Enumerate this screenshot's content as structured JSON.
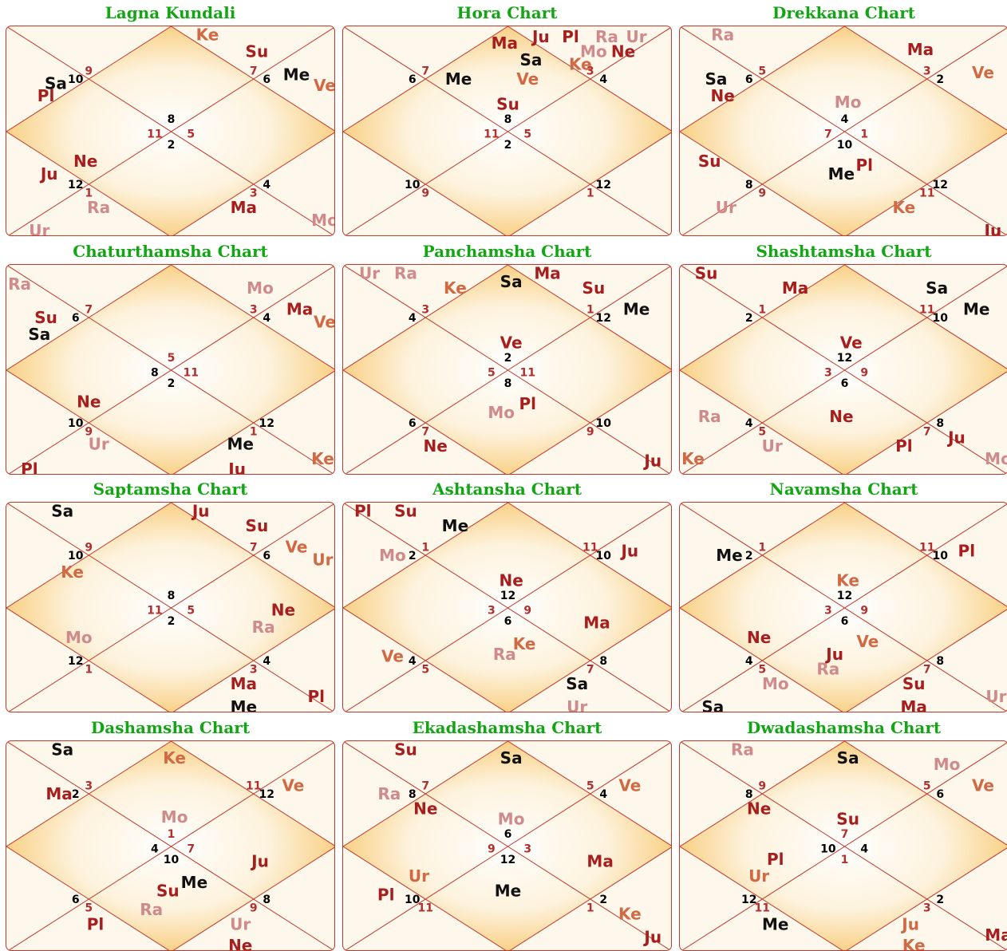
{
  "colors": {
    "title": "#13a513",
    "line": "#c0392b",
    "planet_dark": "#111111",
    "planet_red": "#a61e1e",
    "planet_orange": "#d06a44",
    "planet_pink": "#cf8b8b",
    "house_number": "#000000",
    "house_number_alt": "#b03030",
    "center_glow": "#f8c870",
    "bg": "#fdf7ec"
  },
  "charts": [
    {
      "title": "Lagna Kundali",
      "houses": [
        [
          "8",
          "dark"
        ],
        [
          "11",
          "alt"
        ],
        [
          "2",
          "dark"
        ],
        [
          "5",
          "alt"
        ],
        [
          "10",
          "dark"
        ],
        [
          "9",
          "alt"
        ],
        [
          "6",
          "dark"
        ],
        [
          "7",
          "alt"
        ],
        [
          "12",
          "dark"
        ],
        [
          "1",
          "alt"
        ],
        [
          "4",
          "dark"
        ],
        [
          "3",
          "alt"
        ]
      ],
      "planets": [
        [
          "Ke",
          "orange"
        ],
        [
          "Su",
          "red"
        ],
        [
          "Me",
          "dark"
        ],
        [
          "Ve",
          "orange"
        ],
        [
          "Sa",
          "dark"
        ],
        [
          "Pl",
          "red"
        ],
        [
          "Ne",
          "red"
        ],
        [
          "Ju",
          "red"
        ],
        [
          "Ra",
          "pink"
        ],
        [
          "Ur",
          "pink"
        ],
        [
          "Ma",
          "red"
        ],
        [
          "Mo",
          "pink"
        ]
      ]
    },
    {
      "title": "Hora Chart",
      "houses": [
        [
          "8",
          "dark"
        ],
        [
          "11",
          "alt"
        ],
        [
          "2",
          "dark"
        ],
        [
          "5",
          "alt"
        ],
        [
          "6",
          "dark"
        ],
        [
          "7",
          "alt"
        ],
        [
          "4",
          "dark"
        ],
        [
          "3",
          "alt"
        ],
        [
          "10",
          "dark"
        ],
        [
          "9",
          "alt"
        ],
        [
          "12",
          "dark"
        ],
        [
          "1",
          "alt"
        ]
      ],
      "planets": [
        [
          "Ma",
          "red"
        ],
        [
          "Ju",
          "red"
        ],
        [
          "Pl",
          "red"
        ],
        [
          "Ra",
          "pink"
        ],
        [
          "Ur",
          "pink"
        ],
        [
          "Mo",
          "pink"
        ],
        [
          "Ne",
          "red"
        ],
        [
          "Sa",
          "dark"
        ],
        [
          "Ke",
          "orange"
        ],
        [
          "Ve",
          "orange"
        ],
        [
          "Me",
          "dark"
        ],
        [
          "Su",
          "red"
        ]
      ]
    },
    {
      "title": "Drekkana Chart",
      "houses": [
        [
          "4",
          "dark"
        ],
        [
          "7",
          "alt"
        ],
        [
          "10",
          "dark"
        ],
        [
          "1",
          "alt"
        ],
        [
          "6",
          "dark"
        ],
        [
          "5",
          "alt"
        ],
        [
          "2",
          "dark"
        ],
        [
          "3",
          "alt"
        ],
        [
          "8",
          "dark"
        ],
        [
          "9",
          "alt"
        ],
        [
          "12",
          "dark"
        ],
        [
          "11",
          "alt"
        ]
      ],
      "planets": [
        [
          "Ra",
          "pink"
        ],
        [
          "Ma",
          "red"
        ],
        [
          "Ve",
          "orange"
        ],
        [
          "Sa",
          "dark"
        ],
        [
          "Ne",
          "red"
        ],
        [
          "Mo",
          "pink"
        ],
        [
          "Su",
          "red"
        ],
        [
          "Me",
          "dark"
        ],
        [
          "Pl",
          "red"
        ],
        [
          "Ur",
          "pink"
        ],
        [
          "Ke",
          "orange"
        ],
        [
          "Ju",
          "red"
        ]
      ]
    },
    {
      "title": "Chaturthamsha Chart",
      "houses": [
        [
          "5",
          "alt"
        ],
        [
          "8",
          "dark"
        ],
        [
          "2",
          "dark"
        ],
        [
          "11",
          "alt"
        ],
        [
          "6",
          "dark"
        ],
        [
          "7",
          "alt"
        ],
        [
          "4",
          "dark"
        ],
        [
          "3",
          "alt"
        ],
        [
          "10",
          "dark"
        ],
        [
          "9",
          "alt"
        ],
        [
          "12",
          "dark"
        ],
        [
          "1",
          "alt"
        ]
      ],
      "planets": [
        [
          "Ra",
          "pink"
        ],
        [
          "Mo",
          "pink"
        ],
        [
          "Ma",
          "red"
        ],
        [
          "Ve",
          "orange"
        ],
        [
          "Su",
          "red"
        ],
        [
          "Sa",
          "dark"
        ],
        [
          "Ne",
          "red"
        ],
        [
          "Ur",
          "pink"
        ],
        [
          "Pl",
          "red"
        ],
        [
          "Me",
          "dark"
        ],
        [
          "Ju",
          "red"
        ],
        [
          "Ke",
          "orange"
        ]
      ]
    },
    {
      "title": "Panchamsha Chart",
      "houses": [
        [
          "2",
          "dark"
        ],
        [
          "5",
          "alt"
        ],
        [
          "8",
          "dark"
        ],
        [
          "11",
          "alt"
        ],
        [
          "4",
          "dark"
        ],
        [
          "3",
          "alt"
        ],
        [
          "12",
          "dark"
        ],
        [
          "1",
          "alt"
        ],
        [
          "6",
          "dark"
        ],
        [
          "7",
          "alt"
        ],
        [
          "10",
          "dark"
        ],
        [
          "9",
          "alt"
        ]
      ],
      "planets": [
        [
          "Ur",
          "pink"
        ],
        [
          "Ra",
          "pink"
        ],
        [
          "Ke",
          "orange"
        ],
        [
          "Sa",
          "dark"
        ],
        [
          "Ma",
          "red"
        ],
        [
          "Su",
          "red"
        ],
        [
          "Me",
          "dark"
        ],
        [
          "Ve",
          "red"
        ],
        [
          "Pl",
          "red"
        ],
        [
          "Mo",
          "pink"
        ],
        [
          "Ne",
          "red"
        ],
        [
          "Ju",
          "red"
        ]
      ]
    },
    {
      "title": "Shashtamsha Chart",
      "houses": [
        [
          "12",
          "dark"
        ],
        [
          "3",
          "alt"
        ],
        [
          "6",
          "dark"
        ],
        [
          "9",
          "alt"
        ],
        [
          "2",
          "dark"
        ],
        [
          "1",
          "alt"
        ],
        [
          "10",
          "dark"
        ],
        [
          "11",
          "alt"
        ],
        [
          "4",
          "dark"
        ],
        [
          "5",
          "alt"
        ],
        [
          "8",
          "dark"
        ],
        [
          "7",
          "alt"
        ]
      ],
      "planets": [
        [
          "Su",
          "red"
        ],
        [
          "Ma",
          "red"
        ],
        [
          "Sa",
          "dark"
        ],
        [
          "Me",
          "dark"
        ],
        [
          "Ve",
          "red"
        ],
        [
          "Ne",
          "red"
        ],
        [
          "Ra",
          "pink"
        ],
        [
          "Ur",
          "pink"
        ],
        [
          "Ke",
          "orange"
        ],
        [
          "Pl",
          "red"
        ],
        [
          "Ju",
          "red"
        ],
        [
          "Mo",
          "pink"
        ]
      ]
    },
    {
      "title": "Saptamsha Chart",
      "houses": [
        [
          "8",
          "dark"
        ],
        [
          "11",
          "alt"
        ],
        [
          "2",
          "dark"
        ],
        [
          "5",
          "alt"
        ],
        [
          "10",
          "dark"
        ],
        [
          "9",
          "alt"
        ],
        [
          "6",
          "dark"
        ],
        [
          "7",
          "alt"
        ],
        [
          "12",
          "dark"
        ],
        [
          "1",
          "alt"
        ],
        [
          "4",
          "dark"
        ],
        [
          "3",
          "alt"
        ]
      ],
      "planets": [
        [
          "Sa",
          "dark"
        ],
        [
          "Ju",
          "red"
        ],
        [
          "Su",
          "red"
        ],
        [
          "Ve",
          "orange"
        ],
        [
          "Ur",
          "orange"
        ],
        [
          "Ke",
          "orange"
        ],
        [
          "Ne",
          "red"
        ],
        [
          "Ra",
          "pink"
        ],
        [
          "Mo",
          "pink"
        ],
        [
          "Ma",
          "red"
        ],
        [
          "Me",
          "dark"
        ],
        [
          "Pl",
          "red"
        ]
      ]
    },
    {
      "title": "Ashtansha Chart",
      "houses": [
        [
          "12",
          "dark"
        ],
        [
          "3",
          "alt"
        ],
        [
          "6",
          "dark"
        ],
        [
          "9",
          "alt"
        ],
        [
          "2",
          "dark"
        ],
        [
          "1",
          "alt"
        ],
        [
          "10",
          "dark"
        ],
        [
          "11",
          "alt"
        ],
        [
          "4",
          "dark"
        ],
        [
          "5",
          "alt"
        ],
        [
          "8",
          "dark"
        ],
        [
          "7",
          "alt"
        ]
      ],
      "planets": [
        [
          "Pl",
          "red"
        ],
        [
          "Su",
          "red"
        ],
        [
          "Me",
          "dark"
        ],
        [
          "Mo",
          "pink"
        ],
        [
          "Ju",
          "red"
        ],
        [
          "Ne",
          "red"
        ],
        [
          "Ma",
          "red"
        ],
        [
          "Ke",
          "orange"
        ],
        [
          "Ra",
          "pink"
        ],
        [
          "Ve",
          "orange"
        ],
        [
          "Sa",
          "dark"
        ],
        [
          "Ur",
          "pink"
        ]
      ]
    },
    {
      "title": "Navamsha Chart",
      "houses": [
        [
          "12",
          "dark"
        ],
        [
          "3",
          "alt"
        ],
        [
          "6",
          "dark"
        ],
        [
          "9",
          "alt"
        ],
        [
          "2",
          "dark"
        ],
        [
          "1",
          "alt"
        ],
        [
          "10",
          "dark"
        ],
        [
          "11",
          "alt"
        ],
        [
          "4",
          "dark"
        ],
        [
          "5",
          "alt"
        ],
        [
          "8",
          "dark"
        ],
        [
          "7",
          "alt"
        ]
      ],
      "planets": [
        [
          "Me",
          "dark"
        ],
        [
          "Pl",
          "red"
        ],
        [
          "Ke",
          "orange"
        ],
        [
          "Ne",
          "red"
        ],
        [
          "Ju",
          "red"
        ],
        [
          "Ve",
          "orange"
        ],
        [
          "Ra",
          "pink"
        ],
        [
          "Mo",
          "pink"
        ],
        [
          "Su",
          "red"
        ],
        [
          "Ma",
          "red"
        ],
        [
          "Sa",
          "dark"
        ],
        [
          "Ur",
          "pink"
        ]
      ]
    },
    {
      "title": "Dashamsha Chart",
      "houses": [
        [
          "1",
          "alt"
        ],
        [
          "4",
          "dark"
        ],
        [
          "10",
          "dark"
        ],
        [
          "7",
          "alt"
        ],
        [
          "2",
          "dark"
        ],
        [
          "3",
          "alt"
        ],
        [
          "12",
          "dark"
        ],
        [
          "11",
          "alt"
        ],
        [
          "6",
          "dark"
        ],
        [
          "5",
          "alt"
        ],
        [
          "8",
          "dark"
        ],
        [
          "9",
          "alt"
        ]
      ],
      "planets": [
        [
          "Sa",
          "dark"
        ],
        [
          "Ke",
          "orange"
        ],
        [
          "Ma",
          "red"
        ],
        [
          "Ve",
          "orange"
        ],
        [
          "Mo",
          "pink"
        ],
        [
          "Ju",
          "red"
        ],
        [
          "Me",
          "dark"
        ],
        [
          "Su",
          "red"
        ],
        [
          "Ra",
          "pink"
        ],
        [
          "Pl",
          "red"
        ],
        [
          "Ur",
          "pink"
        ],
        [
          "Ne",
          "red"
        ]
      ]
    },
    {
      "title": "Ekadashamsha Chart",
      "houses": [
        [
          "6",
          "dark"
        ],
        [
          "9",
          "alt"
        ],
        [
          "12",
          "dark"
        ],
        [
          "3",
          "alt"
        ],
        [
          "8",
          "dark"
        ],
        [
          "7",
          "alt"
        ],
        [
          "4",
          "dark"
        ],
        [
          "5",
          "alt"
        ],
        [
          "10",
          "dark"
        ],
        [
          "11",
          "alt"
        ],
        [
          "2",
          "dark"
        ],
        [
          "1",
          "alt"
        ]
      ],
      "planets": [
        [
          "Su",
          "red"
        ],
        [
          "Sa",
          "dark"
        ],
        [
          "Ra",
          "pink"
        ],
        [
          "Ve",
          "orange"
        ],
        [
          "Ne",
          "red"
        ],
        [
          "Mo",
          "pink"
        ],
        [
          "Ma",
          "red"
        ],
        [
          "Ur",
          "orange"
        ],
        [
          "Pl",
          "red"
        ],
        [
          "Me",
          "dark"
        ],
        [
          "Ke",
          "orange"
        ],
        [
          "Ju",
          "red"
        ]
      ]
    },
    {
      "title": "Dwadashamsha Chart",
      "houses": [
        [
          "7",
          "alt"
        ],
        [
          "10",
          "dark"
        ],
        [
          "1",
          "alt"
        ],
        [
          "4",
          "dark"
        ],
        [
          "8",
          "dark"
        ],
        [
          "9",
          "alt"
        ],
        [
          "6",
          "dark"
        ],
        [
          "5",
          "alt"
        ],
        [
          "12",
          "dark"
        ],
        [
          "11",
          "alt"
        ],
        [
          "2",
          "dark"
        ],
        [
          "3",
          "alt"
        ]
      ],
      "planets": [
        [
          "Ra",
          "pink"
        ],
        [
          "Sa",
          "dark"
        ],
        [
          "Mo",
          "pink"
        ],
        [
          "Ve",
          "orange"
        ],
        [
          "Ne",
          "red"
        ],
        [
          "Su",
          "red"
        ],
        [
          "Pl",
          "red"
        ],
        [
          "Ur",
          "orange"
        ],
        [
          "Me",
          "dark"
        ],
        [
          "Ju",
          "orange"
        ],
        [
          "Ke",
          "orange"
        ],
        [
          "Ma",
          "red"
        ]
      ]
    }
  ]
}
